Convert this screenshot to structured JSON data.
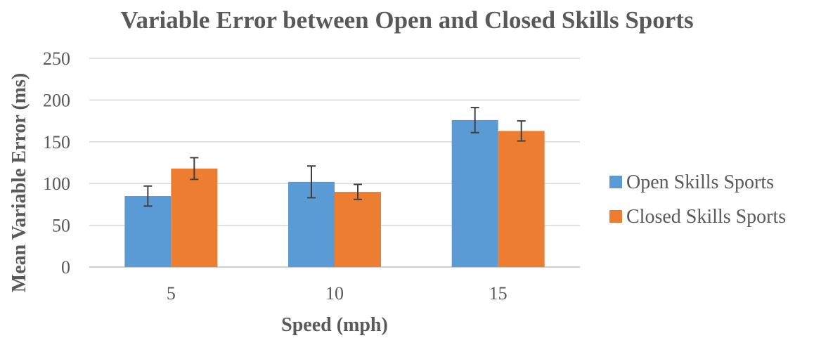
{
  "chart_data": {
    "type": "bar",
    "title": "Variable Error between Open and Closed Skills Sports",
    "xlabel": "Speed (mph)",
    "ylabel": "Mean Variable Error (ms)",
    "ylim": [
      0,
      250
    ],
    "yticks": [
      0,
      50,
      100,
      150,
      200,
      250
    ],
    "grid": true,
    "legend_position": "right",
    "categories": [
      "5",
      "10",
      "15"
    ],
    "series": [
      {
        "name": "Open Skills Sports",
        "color": "#5b9bd5",
        "values": [
          85,
          102,
          176
        ],
        "errors": [
          12,
          19,
          15
        ]
      },
      {
        "name": "Closed Skills Sports",
        "color": "#ed7d31",
        "values": [
          118,
          90,
          163
        ],
        "errors": [
          13,
          9,
          12
        ]
      }
    ]
  }
}
